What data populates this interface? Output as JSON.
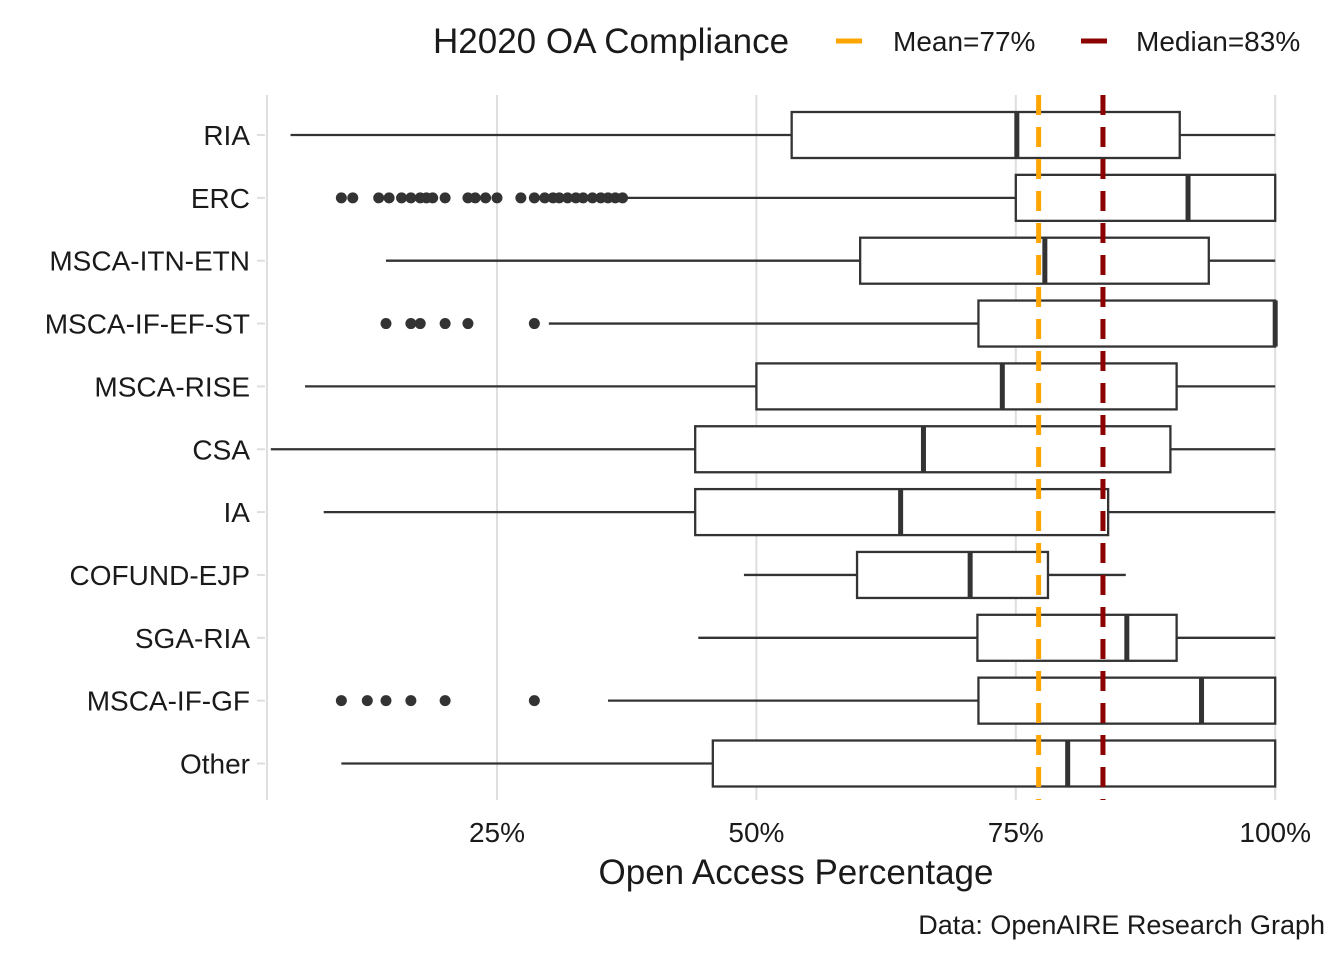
{
  "chart_data": {
    "type": "boxplot",
    "title": "",
    "xlabel": "Open Access Percentage",
    "ylabel": "",
    "caption": "Data: OpenAIRE Research Graph",
    "xlim": [
      3,
      100
    ],
    "x_ticks": [
      {
        "value": 25,
        "label": "25%"
      },
      {
        "value": 50,
        "label": "50%"
      },
      {
        "value": 75,
        "label": "75%"
      },
      {
        "value": 100,
        "label": "100%"
      }
    ],
    "grid": true,
    "legend": {
      "title": "H2020 OA Compliance",
      "placement": "top",
      "items": [
        {
          "label": "Mean=77%",
          "color": "#FFA500",
          "value": 77.2
        },
        {
          "label": "Median=83%",
          "color": "#8B0000",
          "value": 83.4
        }
      ]
    },
    "box_color": "#333333",
    "outlier_color": "#333333",
    "categories": [
      "RIA",
      "ERC",
      "MSCA-ITN-ETN",
      "MSCA-IF-EF-ST",
      "MSCA-RISE",
      "CSA",
      "IA",
      "COFUND-EJP",
      "SGA-RIA",
      "MSCA-IF-GF",
      "Other"
    ],
    "boxes": [
      {
        "category": "RIA",
        "whisker_low": 5.1,
        "q1": 53.4,
        "median": 75.1,
        "q3": 90.8,
        "whisker_high": 100,
        "outliers": []
      },
      {
        "category": "ERC",
        "whisker_low": 37.4,
        "q1": 75.0,
        "median": 91.6,
        "q3": 100,
        "whisker_high": 100,
        "outliers": [
          10.0,
          11.1,
          13.6,
          14.6,
          15.8,
          16.7,
          17.6,
          18.2,
          18.8,
          20.0,
          22.2,
          22.9,
          23.9,
          25.0,
          27.3,
          28.6,
          29.6,
          30.4,
          31.0,
          31.8,
          32.6,
          33.3,
          34.2,
          35.0,
          35.7,
          36.4,
          37.1
        ]
      },
      {
        "category": "MSCA-ITN-ETN",
        "whisker_low": 14.3,
        "q1": 60.0,
        "median": 77.8,
        "q3": 93.6,
        "whisker_high": 100,
        "outliers": []
      },
      {
        "category": "MSCA-IF-EF-ST",
        "whisker_low": 30.0,
        "q1": 71.4,
        "median": 100,
        "q3": 100,
        "whisker_high": 100,
        "outliers": [
          14.3,
          16.7,
          17.6,
          20.0,
          22.2,
          28.6
        ]
      },
      {
        "category": "MSCA-RISE",
        "whisker_low": 6.5,
        "q1": 50.0,
        "median": 73.7,
        "q3": 90.5,
        "whisker_high": 100,
        "outliers": []
      },
      {
        "category": "CSA",
        "whisker_low": 3.2,
        "q1": 44.1,
        "median": 66.1,
        "q3": 89.9,
        "whisker_high": 100,
        "outliers": []
      },
      {
        "category": "IA",
        "whisker_low": 8.3,
        "q1": 44.1,
        "median": 63.9,
        "q3": 83.9,
        "whisker_high": 100,
        "outliers": []
      },
      {
        "category": "COFUND-EJP",
        "whisker_low": 48.8,
        "q1": 59.7,
        "median": 70.6,
        "q3": 78.1,
        "whisker_high": 85.6,
        "outliers": []
      },
      {
        "category": "SGA-RIA",
        "whisker_low": 44.4,
        "q1": 71.3,
        "median": 85.7,
        "q3": 90.5,
        "whisker_high": 100,
        "outliers": []
      },
      {
        "category": "MSCA-IF-GF",
        "whisker_low": 35.7,
        "q1": 71.4,
        "median": 92.9,
        "q3": 100,
        "whisker_high": 100,
        "outliers": [
          10.0,
          12.5,
          14.3,
          16.7,
          20.0,
          28.6
        ]
      },
      {
        "category": "Other",
        "whisker_low": 10.0,
        "q1": 45.8,
        "median": 80.0,
        "q3": 100,
        "whisker_high": 100,
        "outliers": []
      }
    ]
  }
}
